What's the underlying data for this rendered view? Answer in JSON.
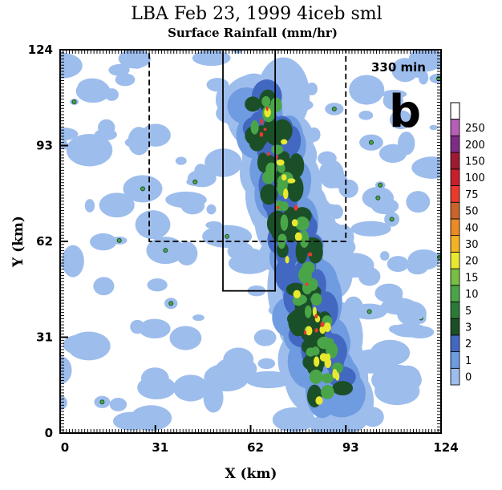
{
  "chart_data": {
    "type": "contour",
    "title": "LBA  Feb 23, 1999   4iceb sml",
    "subtitle": "Surface Rainfall (mm/hr)",
    "annotation": "330 min",
    "panel_label": "b",
    "x_label": "X (km)",
    "y_label": "Y (km)",
    "xlim": [
      0,
      124
    ],
    "ylim": [
      0,
      124
    ],
    "xticks": [
      0,
      31,
      62,
      93,
      124
    ],
    "yticks": [
      0,
      31,
      62,
      93,
      124
    ],
    "levels": [
      0,
      1,
      2,
      3,
      5,
      10,
      15,
      20,
      30,
      40,
      50,
      75,
      100,
      150,
      200,
      250
    ],
    "colors": [
      "#9dbdec",
      "#6f9be0",
      "#4268c2",
      "#1b4f27",
      "#2c7a38",
      "#4aa548",
      "#78bf43",
      "#e8e831",
      "#f4b324",
      "#ec8a25",
      "#c9642c",
      "#ea3a2c",
      "#c81f2a",
      "#9e1a32",
      "#7d2d86",
      "#b65fb6"
    ],
    "boxes": [
      {
        "xlim": [
          29,
          93
        ],
        "ylim": [
          62,
          124
        ],
        "style": "dashed"
      },
      {
        "xlim": [
          53,
          70
        ],
        "ylim": [
          46,
          124
        ],
        "style": "solid"
      }
    ]
  }
}
